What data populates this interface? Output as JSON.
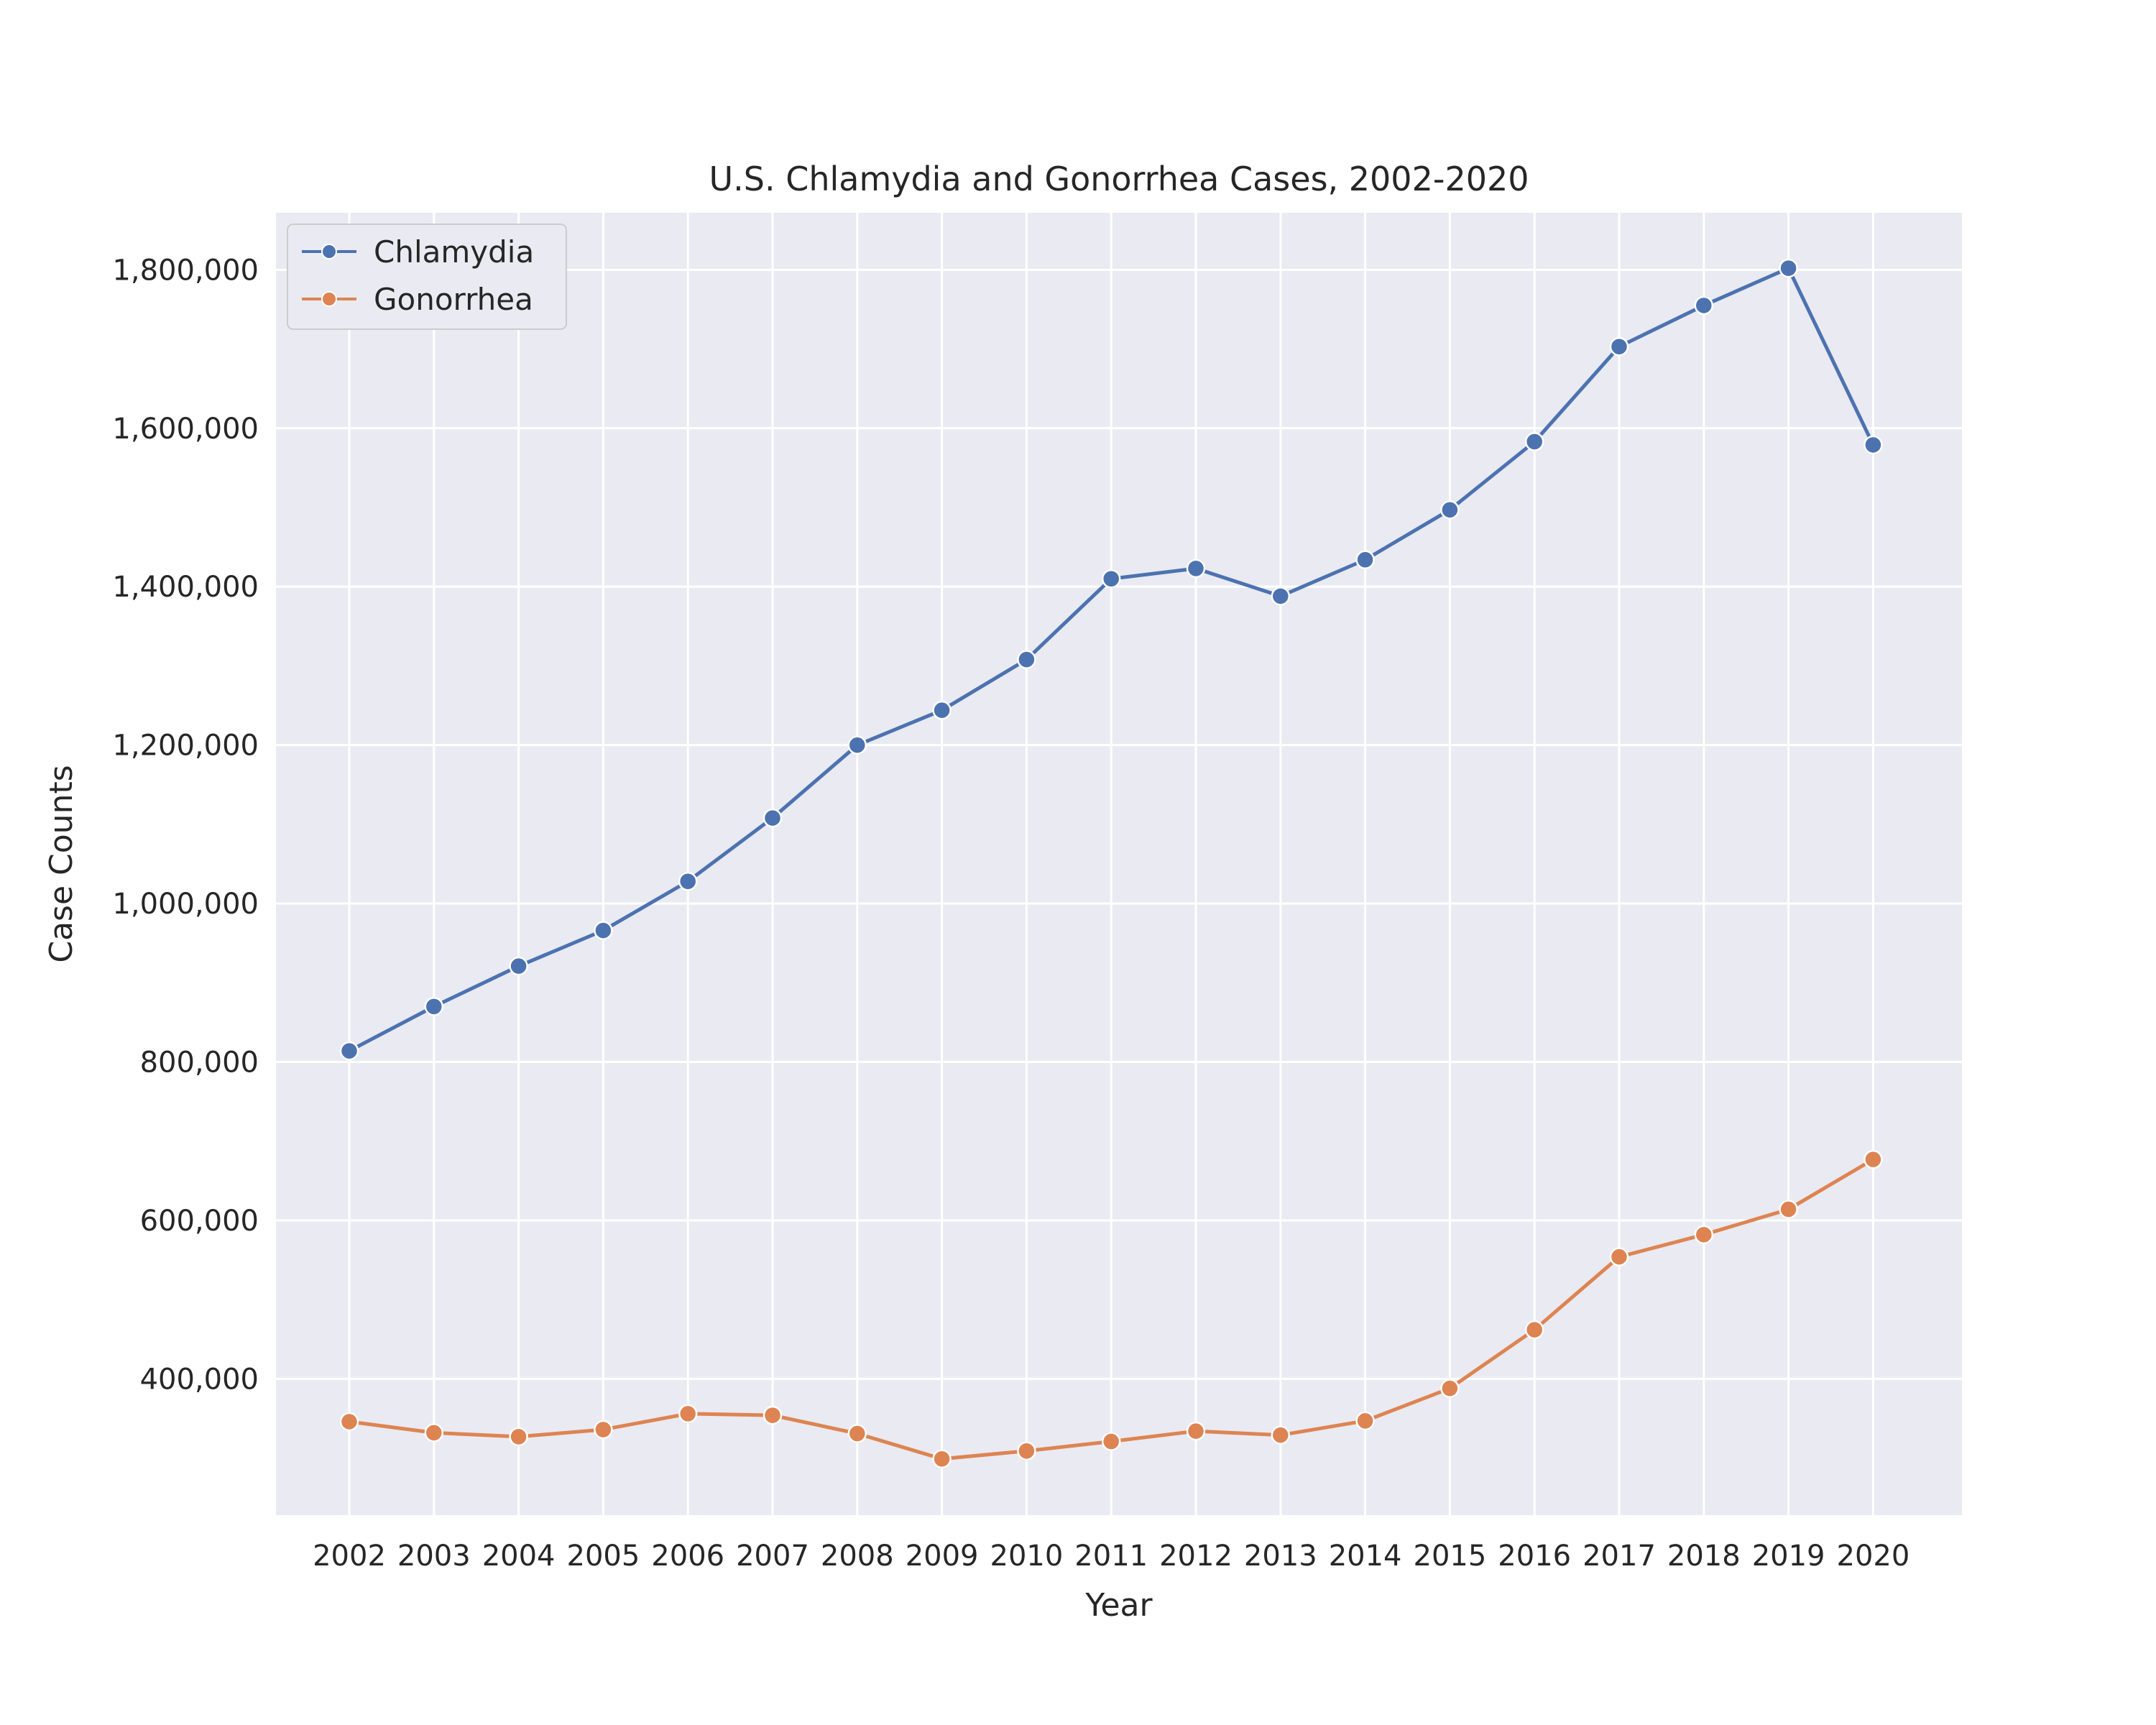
{
  "chart_data": {
    "type": "line",
    "title": "U.S. Chlamydia and Gonorrhea Cases, 2002-2020",
    "xlabel": "Year",
    "ylabel": "Case Counts",
    "x": [
      "2002",
      "2003",
      "2004",
      "2005",
      "2006",
      "2007",
      "2008",
      "2009",
      "2010",
      "2011",
      "2012",
      "2013",
      "2014",
      "2015",
      "2016",
      "2017",
      "2018",
      "2019",
      "2020"
    ],
    "ylim": [
      228000,
      1872000
    ],
    "yticks": [
      400000,
      600000,
      800000,
      1000000,
      1200000,
      1400000,
      1600000,
      1800000
    ],
    "ytick_labels": [
      "400,000",
      "600,000",
      "800,000",
      "1,000,000",
      "1,200,000",
      "1,400,000",
      "1,600,000",
      "1,800,000"
    ],
    "grid": true,
    "legend": "top-left",
    "series": [
      {
        "name": "Chlamydia",
        "color": "#4c72b0",
        "values": [
          814000,
          870000,
          921000,
          966000,
          1028000,
          1108000,
          1200000,
          1244000,
          1308000,
          1410000,
          1423000,
          1388000,
          1434000,
          1497000,
          1583000,
          1703000,
          1755000,
          1802000,
          1579000
        ]
      },
      {
        "name": "Gonorrhea",
        "color": "#dd8452",
        "values": [
          346000,
          332000,
          327000,
          336000,
          356000,
          354000,
          331000,
          299000,
          309000,
          321000,
          334000,
          329000,
          347000,
          388000,
          462000,
          554000,
          582000,
          614000,
          677000
        ]
      }
    ]
  }
}
